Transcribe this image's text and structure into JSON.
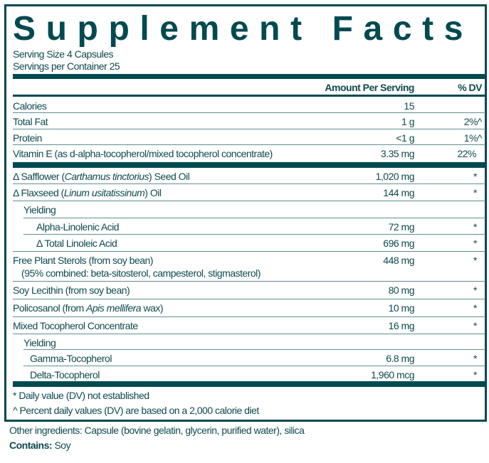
{
  "title": "Supplement Facts",
  "serving_size": "Serving Size 4 Capsules",
  "servings_per_container": "Servings per Container 25",
  "header": {
    "amount": "Amount Per Serving",
    "dv": "% DV"
  },
  "rows_top": [
    {
      "name": "Calories",
      "amount": "15",
      "dv": ""
    },
    {
      "name": "Total Fat",
      "amount": "1 g",
      "dv": "2%^"
    },
    {
      "name": "Protein",
      "amount": "<1 g",
      "dv": "1%^"
    },
    {
      "name": "Vitamin E (as d-alpha-tocopherol/mixed tocopherol concentrate)",
      "amount": "3.35 mg",
      "dv": "22%"
    }
  ],
  "safflower": {
    "pre": "Δ Safflower (",
    "italic": "Carthamus tinctorius",
    "post": ") Seed Oil",
    "amount": "1,020 mg",
    "dv": "*"
  },
  "flaxseed": {
    "pre": "Δ Flaxseed (",
    "italic": "Linum usitatissinum",
    "post": ") Oil",
    "amount": "144 mg",
    "dv": "*"
  },
  "yielding_label": "Yielding",
  "alpha": {
    "name": "Alpha-Linolenic Acid",
    "amount": "72 mg",
    "dv": "*"
  },
  "linoleic": {
    "name": "Δ Total Linoleic Acid",
    "amount": "696 mg",
    "dv": "*"
  },
  "sterols": {
    "name": "Free Plant Sterols (from soy bean)",
    "sub": "(95% combined: beta-sitosterol, campesterol, stigmasterol)",
    "amount": "448 mg",
    "dv": "*"
  },
  "lecithin": {
    "name": "Soy Lecithin (from soy bean)",
    "amount": "80 mg",
    "dv": "*"
  },
  "policosanol": {
    "pre": "Policosanol (from ",
    "italic": "Apis mellifera",
    "post": " wax)",
    "amount": "10 mg",
    "dv": "*"
  },
  "mixed": {
    "name": "Mixed Tocopherol Concentrate",
    "amount": "16 mg",
    "dv": "*"
  },
  "gamma": {
    "name": "Gamma-Tocopherol",
    "amount": "6.8 mg",
    "dv": "*"
  },
  "delta": {
    "name": "Delta-Tocopherol",
    "amount": "1,960 mcg",
    "dv": "*"
  },
  "footnotes": [
    "* Daily value (DV) not established",
    "^ Percent daily values (DV) are based on a 2,000 calorie diet"
  ],
  "other_ingredients": "Other ingredients: Capsule (bovine gelatin, glycerin, purified water), silica",
  "contains": {
    "label": "Contains:",
    "value": " Soy"
  },
  "colors": {
    "accent": "#004a50",
    "text": "#0f4a4f"
  }
}
